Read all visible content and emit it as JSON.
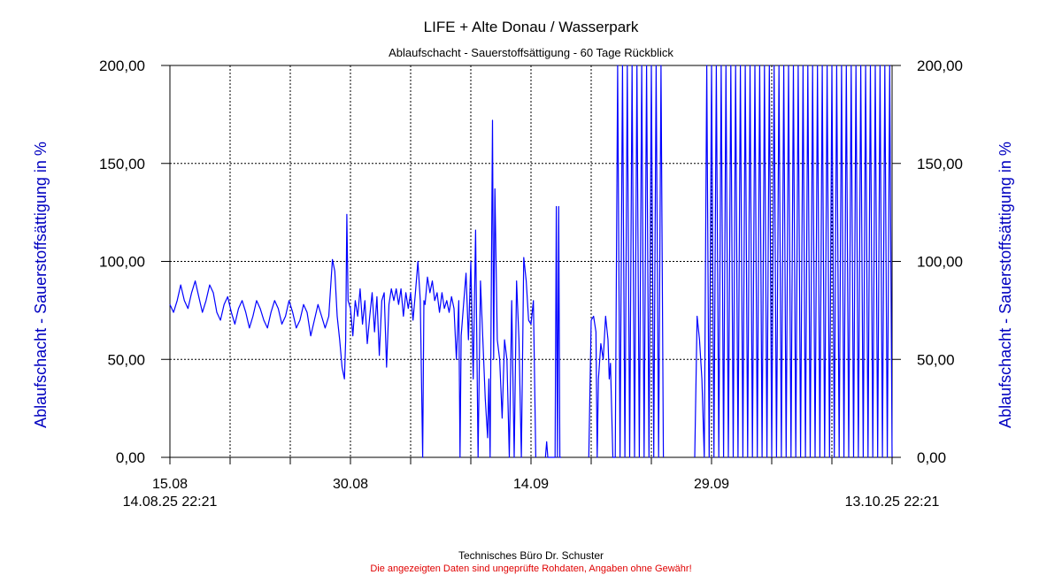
{
  "chart_data": {
    "type": "line",
    "title": "LIFE + Alte Donau / Wasserpark",
    "subtitle": "Ablaufschacht - Sauerstoffsättigung - 60 Tage Rückblick",
    "ylabel_left": "Ablaufschacht - Sauerstoffsättigung in %",
    "ylabel_right": "Ablaufschacht - Sauerstoffsättigung in %",
    "ylim": [
      0,
      200
    ],
    "yticks": [
      "0,00",
      "50,00",
      "100,00",
      "150,00",
      "200,00"
    ],
    "yticks_values": [
      0,
      50,
      100,
      150,
      200
    ],
    "xlim_days": [
      0,
      60
    ],
    "x_labels": [
      {
        "day": 0,
        "label": "15.08"
      },
      {
        "day": 15,
        "label": "30.08"
      },
      {
        "day": 30,
        "label": "14.09"
      },
      {
        "day": 45,
        "label": "29.09"
      }
    ],
    "x_start_label": "14.08.25 22:21",
    "x_end_label": "13.10.25 22:21",
    "grid": true,
    "series_color": "#0000ff",
    "series": [
      {
        "values": [
          [
            0.0,
            78
          ],
          [
            0.3,
            74
          ],
          [
            0.6,
            80
          ],
          [
            0.9,
            88
          ],
          [
            1.2,
            80
          ],
          [
            1.5,
            76
          ],
          [
            1.8,
            84
          ],
          [
            2.1,
            90
          ],
          [
            2.4,
            82
          ],
          [
            2.7,
            74
          ],
          [
            3.0,
            80
          ],
          [
            3.3,
            88
          ],
          [
            3.6,
            84
          ],
          [
            3.9,
            74
          ],
          [
            4.2,
            70
          ],
          [
            4.5,
            78
          ],
          [
            4.8,
            82
          ],
          [
            5.1,
            74
          ],
          [
            5.4,
            68
          ],
          [
            5.7,
            76
          ],
          [
            6.0,
            80
          ],
          [
            6.3,
            74
          ],
          [
            6.6,
            66
          ],
          [
            6.9,
            72
          ],
          [
            7.2,
            80
          ],
          [
            7.5,
            76
          ],
          [
            7.8,
            70
          ],
          [
            8.1,
            66
          ],
          [
            8.4,
            74
          ],
          [
            8.7,
            80
          ],
          [
            9.0,
            76
          ],
          [
            9.3,
            68
          ],
          [
            9.6,
            72
          ],
          [
            9.9,
            80
          ],
          [
            10.2,
            74
          ],
          [
            10.5,
            66
          ],
          [
            10.8,
            70
          ],
          [
            11.1,
            78
          ],
          [
            11.4,
            74
          ],
          [
            11.7,
            62
          ],
          [
            12.0,
            70
          ],
          [
            12.3,
            78
          ],
          [
            12.6,
            72
          ],
          [
            12.9,
            66
          ],
          [
            13.2,
            72
          ],
          [
            13.5,
            101
          ],
          [
            13.7,
            95
          ],
          [
            13.9,
            72
          ],
          [
            14.1,
            60
          ],
          [
            14.3,
            46
          ],
          [
            14.5,
            40
          ],
          [
            14.6,
            60
          ],
          [
            14.7,
            124
          ],
          [
            14.8,
            80
          ],
          [
            15.0,
            76
          ],
          [
            15.2,
            62
          ],
          [
            15.4,
            80
          ],
          [
            15.6,
            72
          ],
          [
            15.8,
            86
          ],
          [
            16.0,
            68
          ],
          [
            16.2,
            80
          ],
          [
            16.4,
            58
          ],
          [
            16.6,
            72
          ],
          [
            16.8,
            84
          ],
          [
            17.0,
            64
          ],
          [
            17.2,
            82
          ],
          [
            17.4,
            52
          ],
          [
            17.6,
            80
          ],
          [
            17.8,
            84
          ],
          [
            18.0,
            46
          ],
          [
            18.2,
            78
          ],
          [
            18.4,
            86
          ],
          [
            18.6,
            80
          ],
          [
            18.8,
            86
          ],
          [
            19.0,
            78
          ],
          [
            19.2,
            86
          ],
          [
            19.4,
            72
          ],
          [
            19.6,
            84
          ],
          [
            19.8,
            76
          ],
          [
            20.0,
            84
          ],
          [
            20.2,
            70
          ],
          [
            20.4,
            84
          ],
          [
            20.6,
            100
          ],
          [
            20.8,
            80
          ],
          [
            21.0,
            0
          ],
          [
            21.1,
            80
          ],
          [
            21.2,
            78
          ],
          [
            21.4,
            92
          ],
          [
            21.6,
            84
          ],
          [
            21.8,
            90
          ],
          [
            22.0,
            80
          ],
          [
            22.2,
            84
          ],
          [
            22.4,
            74
          ],
          [
            22.6,
            84
          ],
          [
            22.8,
            76
          ],
          [
            23.0,
            80
          ],
          [
            23.2,
            74
          ],
          [
            23.4,
            82
          ],
          [
            23.6,
            76
          ],
          [
            23.8,
            50
          ],
          [
            24.0,
            80
          ],
          [
            24.1,
            0
          ],
          [
            24.2,
            62
          ],
          [
            24.4,
            78
          ],
          [
            24.6,
            94
          ],
          [
            24.8,
            60
          ],
          [
            25.0,
            100
          ],
          [
            25.2,
            40
          ],
          [
            25.4,
            116
          ],
          [
            25.6,
            0
          ],
          [
            25.8,
            90
          ],
          [
            26.0,
            60
          ],
          [
            26.2,
            30
          ],
          [
            26.4,
            10
          ],
          [
            26.5,
            40
          ],
          [
            26.6,
            0
          ],
          [
            26.8,
            172
          ],
          [
            26.9,
            50
          ],
          [
            27.0,
            137
          ],
          [
            27.2,
            60
          ],
          [
            27.4,
            50
          ],
          [
            27.6,
            20
          ],
          [
            27.8,
            60
          ],
          [
            28.0,
            50
          ],
          [
            28.2,
            0
          ],
          [
            28.4,
            80
          ],
          [
            28.6,
            0
          ],
          [
            28.8,
            90
          ],
          [
            29.0,
            60
          ],
          [
            29.2,
            0
          ],
          [
            29.4,
            102
          ],
          [
            29.6,
            90
          ],
          [
            29.8,
            70
          ],
          [
            30.0,
            68
          ],
          [
            30.2,
            80
          ],
          [
            30.4,
            0
          ]
        ]
      },
      {
        "values": [
          [
            31.2,
            0
          ],
          [
            31.3,
            8
          ],
          [
            31.4,
            0
          ],
          [
            32.0,
            0
          ],
          [
            32.1,
            128
          ],
          [
            32.2,
            0
          ],
          [
            32.3,
            128
          ],
          [
            32.4,
            0
          ],
          [
            32.5,
            0
          ]
        ]
      },
      {
        "values": [
          [
            34.8,
            0
          ],
          [
            35.0,
            70
          ],
          [
            35.2,
            72
          ],
          [
            35.4,
            64
          ],
          [
            35.5,
            0
          ],
          [
            35.6,
            40
          ],
          [
            35.8,
            58
          ],
          [
            36.0,
            50
          ],
          [
            36.2,
            72
          ],
          [
            36.4,
            60
          ],
          [
            36.5,
            40
          ],
          [
            36.6,
            48
          ],
          [
            36.8,
            0
          ],
          [
            37.0,
            0
          ],
          [
            37.2,
            200
          ],
          [
            37.4,
            0
          ],
          [
            37.6,
            200
          ],
          [
            37.8,
            0
          ],
          [
            38.0,
            200
          ],
          [
            38.2,
            0
          ],
          [
            38.4,
            200
          ],
          [
            38.6,
            0
          ],
          [
            38.8,
            200
          ],
          [
            39.0,
            0
          ],
          [
            39.2,
            200
          ],
          [
            39.4,
            0
          ],
          [
            39.6,
            200
          ],
          [
            39.8,
            0
          ],
          [
            40.0,
            200
          ],
          [
            40.2,
            0
          ],
          [
            40.4,
            200
          ],
          [
            40.6,
            0
          ],
          [
            40.8,
            200
          ],
          [
            41.0,
            0
          ]
        ]
      },
      {
        "values": [
          [
            43.6,
            0
          ],
          [
            43.8,
            72
          ],
          [
            44.0,
            60
          ],
          [
            44.2,
            40
          ],
          [
            44.4,
            0
          ],
          [
            44.6,
            200
          ],
          [
            44.8,
            0
          ],
          [
            45.0,
            200
          ],
          [
            45.2,
            0
          ],
          [
            45.4,
            200
          ],
          [
            45.6,
            0
          ],
          [
            45.8,
            200
          ],
          [
            46.0,
            0
          ],
          [
            46.2,
            200
          ],
          [
            46.4,
            0
          ],
          [
            46.6,
            200
          ],
          [
            46.8,
            0
          ],
          [
            47.0,
            200
          ],
          [
            47.2,
            0
          ],
          [
            47.4,
            200
          ],
          [
            47.6,
            0
          ],
          [
            47.8,
            200
          ],
          [
            48.0,
            0
          ],
          [
            48.2,
            200
          ],
          [
            48.4,
            0
          ],
          [
            48.6,
            200
          ],
          [
            48.8,
            0
          ],
          [
            49.0,
            200
          ],
          [
            49.2,
            0
          ],
          [
            49.4,
            200
          ],
          [
            49.6,
            0
          ],
          [
            49.8,
            200
          ],
          [
            50.0,
            0
          ],
          [
            50.2,
            200
          ],
          [
            50.4,
            0
          ],
          [
            50.6,
            200
          ],
          [
            50.8,
            0
          ],
          [
            51.0,
            200
          ],
          [
            51.2,
            0
          ],
          [
            51.4,
            200
          ],
          [
            51.6,
            0
          ],
          [
            51.8,
            200
          ],
          [
            52.0,
            0
          ],
          [
            52.2,
            200
          ],
          [
            52.4,
            0
          ],
          [
            52.6,
            200
          ],
          [
            52.8,
            0
          ],
          [
            53.0,
            200
          ],
          [
            53.2,
            0
          ],
          [
            53.4,
            200
          ],
          [
            53.6,
            0
          ],
          [
            53.8,
            200
          ],
          [
            54.0,
            0
          ],
          [
            54.2,
            200
          ],
          [
            54.4,
            0
          ],
          [
            54.6,
            200
          ],
          [
            54.8,
            0
          ],
          [
            55.0,
            200
          ],
          [
            55.2,
            0
          ],
          [
            55.4,
            200
          ],
          [
            55.6,
            0
          ],
          [
            55.8,
            200
          ],
          [
            56.0,
            0
          ],
          [
            56.2,
            200
          ],
          [
            56.4,
            0
          ],
          [
            56.6,
            200
          ],
          [
            56.8,
            0
          ],
          [
            57.0,
            200
          ],
          [
            57.2,
            0
          ],
          [
            57.4,
            200
          ],
          [
            57.6,
            0
          ],
          [
            57.8,
            200
          ],
          [
            58.0,
            0
          ],
          [
            58.2,
            200
          ],
          [
            58.4,
            0
          ],
          [
            58.6,
            200
          ],
          [
            58.8,
            0
          ],
          [
            59.0,
            200
          ],
          [
            59.2,
            0
          ],
          [
            59.4,
            200
          ],
          [
            59.6,
            0
          ],
          [
            59.8,
            200
          ],
          [
            60.0,
            0
          ]
        ]
      }
    ]
  },
  "footer": {
    "credit": "Technisches Büro Dr. Schuster",
    "disclaimer": "Die angezeigten Daten sind ungeprüfte Rohdaten, Angaben ohne Gewähr!"
  }
}
